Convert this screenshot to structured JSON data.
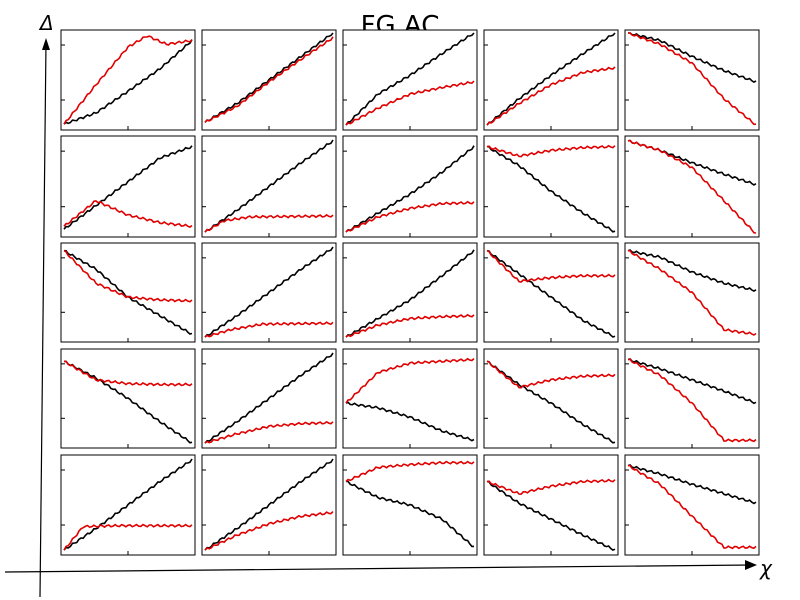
{
  "chart_data": {
    "type": "line",
    "title": "FG AC",
    "xlabel": "χ",
    "ylabel": "Δ",
    "rows": 5,
    "cols": 5,
    "series_colors": {
      "black": "#000000",
      "red": "#e00000"
    },
    "panels": [
      {
        "id": "r1c1",
        "black": [
          [
            0,
            0.03
          ],
          [
            0.25,
            0.15
          ],
          [
            0.5,
            0.38
          ],
          [
            0.75,
            0.62
          ],
          [
            1,
            0.92
          ]
        ],
        "red": [
          [
            0,
            0.03
          ],
          [
            0.25,
            0.45
          ],
          [
            0.5,
            0.85
          ],
          [
            0.65,
            0.97
          ],
          [
            0.8,
            0.88
          ],
          [
            1,
            0.92
          ]
        ]
      },
      {
        "id": "r1c2",
        "black": [
          [
            0,
            0.05
          ],
          [
            0.25,
            0.25
          ],
          [
            0.5,
            0.5
          ],
          [
            0.75,
            0.75
          ],
          [
            1,
            1.0
          ]
        ],
        "red": [
          [
            0,
            0.05
          ],
          [
            0.25,
            0.22
          ],
          [
            0.5,
            0.48
          ],
          [
            0.75,
            0.72
          ],
          [
            1,
            0.95
          ]
        ]
      },
      {
        "id": "r1c3",
        "black": [
          [
            0,
            0.02
          ],
          [
            0.25,
            0.35
          ],
          [
            0.5,
            0.55
          ],
          [
            0.75,
            0.78
          ],
          [
            1,
            1.0
          ]
        ],
        "red": [
          [
            0,
            0.02
          ],
          [
            0.25,
            0.2
          ],
          [
            0.5,
            0.35
          ],
          [
            0.75,
            0.42
          ],
          [
            1,
            0.48
          ]
        ]
      },
      {
        "id": "r1c4",
        "black": [
          [
            0,
            0.02
          ],
          [
            0.25,
            0.3
          ],
          [
            0.5,
            0.55
          ],
          [
            0.75,
            0.78
          ],
          [
            1,
            1.0
          ]
        ],
        "red": [
          [
            0,
            0.02
          ],
          [
            0.25,
            0.25
          ],
          [
            0.5,
            0.45
          ],
          [
            0.75,
            0.58
          ],
          [
            1,
            0.63
          ]
        ]
      },
      {
        "id": "r1c5",
        "black": [
          [
            0,
            1.0
          ],
          [
            0.25,
            0.92
          ],
          [
            0.5,
            0.75
          ],
          [
            0.75,
            0.6
          ],
          [
            1,
            0.48
          ]
        ],
        "red": [
          [
            0,
            1.0
          ],
          [
            0.25,
            0.88
          ],
          [
            0.5,
            0.68
          ],
          [
            0.75,
            0.3
          ],
          [
            1,
            0.02
          ]
        ]
      },
      {
        "id": "r2c1",
        "black": [
          [
            0,
            0.05
          ],
          [
            0.25,
            0.3
          ],
          [
            0.5,
            0.55
          ],
          [
            0.75,
            0.8
          ],
          [
            1,
            0.92
          ]
        ],
        "red": [
          [
            0,
            0.08
          ],
          [
            0.25,
            0.35
          ],
          [
            0.5,
            0.2
          ],
          [
            0.75,
            0.12
          ],
          [
            1,
            0.08
          ]
        ]
      },
      {
        "id": "r2c2",
        "black": [
          [
            0,
            0.02
          ],
          [
            0.25,
            0.25
          ],
          [
            0.5,
            0.5
          ],
          [
            0.75,
            0.75
          ],
          [
            1,
            0.98
          ]
        ],
        "red": [
          [
            0,
            0.02
          ],
          [
            0.15,
            0.14
          ],
          [
            0.35,
            0.18
          ],
          [
            1,
            0.19
          ]
        ]
      },
      {
        "id": "r2c3",
        "black": [
          [
            0,
            0.02
          ],
          [
            0.25,
            0.22
          ],
          [
            0.5,
            0.42
          ],
          [
            0.75,
            0.65
          ],
          [
            1,
            0.92
          ]
        ],
        "red": [
          [
            0,
            0.02
          ],
          [
            0.25,
            0.18
          ],
          [
            0.5,
            0.27
          ],
          [
            0.75,
            0.32
          ],
          [
            1,
            0.33
          ]
        ]
      },
      {
        "id": "r2c4",
        "black": [
          [
            0,
            0.92
          ],
          [
            0.25,
            0.72
          ],
          [
            0.5,
            0.45
          ],
          [
            0.75,
            0.22
          ],
          [
            1,
            0.02
          ]
        ],
        "red": [
          [
            0,
            0.92
          ],
          [
            0.25,
            0.82
          ],
          [
            0.5,
            0.88
          ],
          [
            0.75,
            0.91
          ],
          [
            1,
            0.92
          ]
        ]
      },
      {
        "id": "r2c5",
        "black": [
          [
            0,
            0.98
          ],
          [
            0.25,
            0.88
          ],
          [
            0.5,
            0.75
          ],
          [
            0.75,
            0.63
          ],
          [
            1,
            0.52
          ]
        ],
        "red": [
          [
            0,
            0.98
          ],
          [
            0.25,
            0.88
          ],
          [
            0.5,
            0.7
          ],
          [
            0.75,
            0.35
          ],
          [
            1,
            0.0
          ]
        ]
      },
      {
        "id": "r3c1",
        "black": [
          [
            0,
            0.95
          ],
          [
            0.25,
            0.75
          ],
          [
            0.5,
            0.45
          ],
          [
            0.75,
            0.25
          ],
          [
            1,
            0.05
          ]
        ],
        "red": [
          [
            0,
            0.95
          ],
          [
            0.25,
            0.6
          ],
          [
            0.5,
            0.45
          ],
          [
            0.75,
            0.42
          ],
          [
            1,
            0.41
          ]
        ]
      },
      {
        "id": "r3c2",
        "black": [
          [
            0,
            0.02
          ],
          [
            0.25,
            0.25
          ],
          [
            0.5,
            0.5
          ],
          [
            0.75,
            0.75
          ],
          [
            1,
            0.98
          ]
        ],
        "red": [
          [
            0,
            0.02
          ],
          [
            0.2,
            0.1
          ],
          [
            0.45,
            0.16
          ],
          [
            1,
            0.17
          ]
        ]
      },
      {
        "id": "r3c3",
        "black": [
          [
            0,
            0.02
          ],
          [
            0.25,
            0.22
          ],
          [
            0.5,
            0.42
          ],
          [
            0.75,
            0.68
          ],
          [
            1,
            0.95
          ]
        ],
        "red": [
          [
            0,
            0.02
          ],
          [
            0.25,
            0.15
          ],
          [
            0.5,
            0.22
          ],
          [
            0.75,
            0.24
          ],
          [
            1,
            0.25
          ]
        ]
      },
      {
        "id": "r3c4",
        "black": [
          [
            0,
            0.95
          ],
          [
            0.25,
            0.7
          ],
          [
            0.5,
            0.45
          ],
          [
            0.75,
            0.2
          ],
          [
            1,
            0.02
          ]
        ],
        "red": [
          [
            0,
            0.95
          ],
          [
            0.25,
            0.62
          ],
          [
            0.5,
            0.66
          ],
          [
            0.75,
            0.68
          ],
          [
            1,
            0.68
          ]
        ]
      },
      {
        "id": "r3c5",
        "black": [
          [
            0,
            0.95
          ],
          [
            0.25,
            0.88
          ],
          [
            0.5,
            0.72
          ],
          [
            0.75,
            0.6
          ],
          [
            1,
            0.52
          ]
        ],
        "red": [
          [
            0,
            0.95
          ],
          [
            0.25,
            0.75
          ],
          [
            0.5,
            0.5
          ],
          [
            0.75,
            0.1
          ],
          [
            1,
            0.05
          ]
        ]
      },
      {
        "id": "r4c1",
        "black": [
          [
            0,
            0.9
          ],
          [
            0.25,
            0.72
          ],
          [
            0.5,
            0.5
          ],
          [
            0.75,
            0.25
          ],
          [
            1,
            0.02
          ]
        ],
        "red": [
          [
            0,
            0.9
          ],
          [
            0.25,
            0.7
          ],
          [
            0.5,
            0.66
          ],
          [
            0.75,
            0.65
          ],
          [
            1,
            0.65
          ]
        ]
      },
      {
        "id": "r4c2",
        "black": [
          [
            0,
            0.02
          ],
          [
            0.25,
            0.25
          ],
          [
            0.5,
            0.5
          ],
          [
            0.75,
            0.75
          ],
          [
            1,
            0.98
          ]
        ],
        "red": [
          [
            0,
            0.02
          ],
          [
            0.25,
            0.12
          ],
          [
            0.5,
            0.2
          ],
          [
            0.75,
            0.23
          ],
          [
            1,
            0.24
          ]
        ]
      },
      {
        "id": "r4c3",
        "black": [
          [
            0,
            0.45
          ],
          [
            0.25,
            0.4
          ],
          [
            0.5,
            0.3
          ],
          [
            0.75,
            0.15
          ],
          [
            1,
            0.05
          ]
        ],
        "red": [
          [
            0,
            0.45
          ],
          [
            0.25,
            0.78
          ],
          [
            0.5,
            0.88
          ],
          [
            0.75,
            0.9
          ],
          [
            1,
            0.92
          ]
        ]
      },
      {
        "id": "r4c4",
        "black": [
          [
            0,
            0.9
          ],
          [
            0.25,
            0.65
          ],
          [
            0.5,
            0.45
          ],
          [
            0.75,
            0.22
          ],
          [
            1,
            0.02
          ]
        ],
        "red": [
          [
            0,
            0.9
          ],
          [
            0.25,
            0.62
          ],
          [
            0.5,
            0.7
          ],
          [
            0.75,
            0.74
          ],
          [
            1,
            0.75
          ]
        ]
      },
      {
        "id": "r4c5",
        "black": [
          [
            0,
            0.92
          ],
          [
            0.25,
            0.82
          ],
          [
            0.5,
            0.7
          ],
          [
            0.75,
            0.58
          ],
          [
            1,
            0.45
          ]
        ],
        "red": [
          [
            0,
            0.92
          ],
          [
            0.25,
            0.75
          ],
          [
            0.5,
            0.45
          ],
          [
            0.75,
            0.05
          ],
          [
            1,
            0.05
          ]
        ]
      },
      {
        "id": "r5c1",
        "black": [
          [
            0,
            0.02
          ],
          [
            0.25,
            0.25
          ],
          [
            0.5,
            0.5
          ],
          [
            0.75,
            0.75
          ],
          [
            1,
            0.98
          ]
        ],
        "red": [
          [
            0,
            0.02
          ],
          [
            0.15,
            0.27
          ],
          [
            0.4,
            0.28
          ],
          [
            1,
            0.28
          ]
        ]
      },
      {
        "id": "r5c2",
        "black": [
          [
            0,
            0.02
          ],
          [
            0.25,
            0.25
          ],
          [
            0.5,
            0.5
          ],
          [
            0.75,
            0.75
          ],
          [
            1,
            0.98
          ]
        ],
        "red": [
          [
            0,
            0.02
          ],
          [
            0.25,
            0.18
          ],
          [
            0.5,
            0.3
          ],
          [
            0.75,
            0.38
          ],
          [
            1,
            0.42
          ]
        ]
      },
      {
        "id": "r5c3",
        "black": [
          [
            0,
            0.75
          ],
          [
            0.25,
            0.58
          ],
          [
            0.5,
            0.5
          ],
          [
            0.75,
            0.35
          ],
          [
            1,
            0.05
          ]
        ],
        "red": [
          [
            0,
            0.75
          ],
          [
            0.25,
            0.9
          ],
          [
            0.5,
            0.93
          ],
          [
            0.75,
            0.95
          ],
          [
            1,
            0.95
          ]
        ]
      },
      {
        "id": "r5c4",
        "black": [
          [
            0,
            0.75
          ],
          [
            0.25,
            0.52
          ],
          [
            0.5,
            0.35
          ],
          [
            0.75,
            0.18
          ],
          [
            1,
            0.02
          ]
        ],
        "red": [
          [
            0,
            0.75
          ],
          [
            0.25,
            0.62
          ],
          [
            0.5,
            0.7
          ],
          [
            0.75,
            0.75
          ],
          [
            1,
            0.76
          ]
        ]
      },
      {
        "id": "r5c5",
        "black": [
          [
            0,
            0.92
          ],
          [
            0.25,
            0.83
          ],
          [
            0.5,
            0.72
          ],
          [
            0.75,
            0.62
          ],
          [
            1,
            0.52
          ]
        ],
        "red": [
          [
            0,
            0.92
          ],
          [
            0.25,
            0.72
          ],
          [
            0.5,
            0.38
          ],
          [
            0.75,
            0.05
          ],
          [
            1,
            0.05
          ]
        ]
      }
    ]
  }
}
